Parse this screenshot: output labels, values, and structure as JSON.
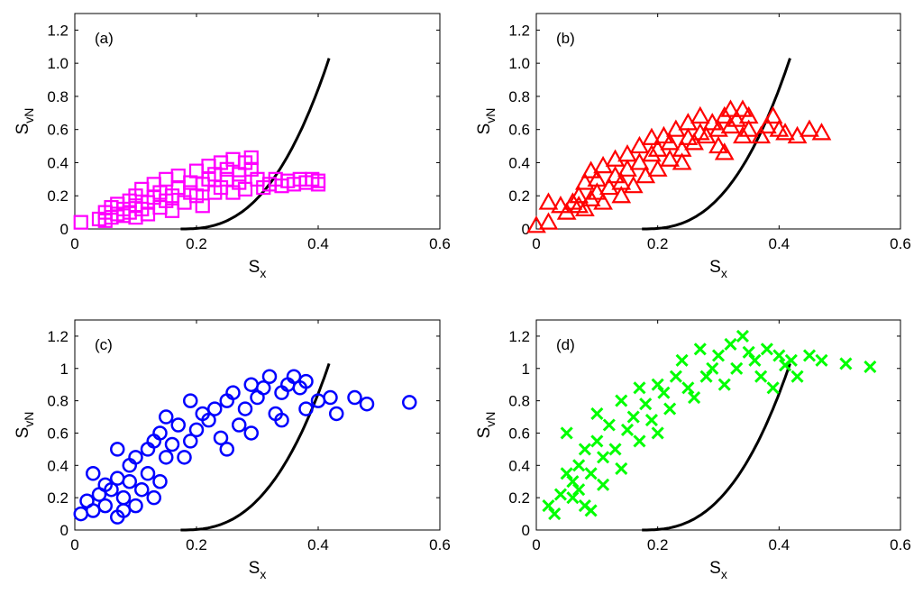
{
  "curve": {
    "color": "#000000",
    "x_start": 0.174,
    "x_end": 0.418
  },
  "chart_data": [
    {
      "type": "scatter",
      "panel_label": "(a)",
      "marker": "square",
      "color": "#ff00ff",
      "xlabel": "S",
      "xlabel_sub": "x",
      "ylabel": "S",
      "ylabel_sub": "vN",
      "xlim": [
        0,
        0.6
      ],
      "ylim": [
        0,
        1.3
      ],
      "xticks": [
        0,
        0.2,
        0.4,
        0.6
      ],
      "xtick_labels": [
        "0",
        "0.2",
        "0.4",
        "0.6"
      ],
      "yticks": [
        0,
        0.2,
        0.4,
        0.6,
        0.8,
        1.0,
        1.2
      ],
      "ytick_labels": [
        "0",
        "0.2",
        "0.4",
        "0.6",
        "0.8",
        "1.0",
        "1.2"
      ],
      "points": [
        [
          0.01,
          0.04
        ],
        [
          0.04,
          0.06
        ],
        [
          0.05,
          0.1
        ],
        [
          0.05,
          0.05
        ],
        [
          0.06,
          0.13
        ],
        [
          0.06,
          0.07
        ],
        [
          0.07,
          0.09
        ],
        [
          0.07,
          0.15
        ],
        [
          0.08,
          0.08
        ],
        [
          0.08,
          0.12
        ],
        [
          0.09,
          0.17
        ],
        [
          0.09,
          0.1
        ],
        [
          0.1,
          0.14
        ],
        [
          0.1,
          0.2
        ],
        [
          0.1,
          0.07
        ],
        [
          0.11,
          0.12
        ],
        [
          0.11,
          0.24
        ],
        [
          0.12,
          0.16
        ],
        [
          0.12,
          0.09
        ],
        [
          0.13,
          0.19
        ],
        [
          0.13,
          0.27
        ],
        [
          0.14,
          0.13
        ],
        [
          0.14,
          0.22
        ],
        [
          0.15,
          0.17
        ],
        [
          0.15,
          0.3
        ],
        [
          0.16,
          0.2
        ],
        [
          0.16,
          0.11
        ],
        [
          0.17,
          0.25
        ],
        [
          0.17,
          0.32
        ],
        [
          0.18,
          0.16
        ],
        [
          0.19,
          0.22
        ],
        [
          0.19,
          0.28
        ],
        [
          0.2,
          0.35
        ],
        [
          0.2,
          0.2
        ],
        [
          0.21,
          0.27
        ],
        [
          0.21,
          0.14
        ],
        [
          0.22,
          0.3
        ],
        [
          0.22,
          0.38
        ],
        [
          0.23,
          0.22
        ],
        [
          0.23,
          0.33
        ],
        [
          0.24,
          0.25
        ],
        [
          0.24,
          0.4
        ],
        [
          0.25,
          0.3
        ],
        [
          0.25,
          0.36
        ],
        [
          0.26,
          0.22
        ],
        [
          0.26,
          0.42
        ],
        [
          0.27,
          0.33
        ],
        [
          0.27,
          0.28
        ],
        [
          0.28,
          0.4
        ],
        [
          0.28,
          0.24
        ],
        [
          0.29,
          0.36
        ],
        [
          0.29,
          0.43
        ],
        [
          0.3,
          0.3
        ],
        [
          0.31,
          0.25
        ],
        [
          0.32,
          0.27
        ],
        [
          0.33,
          0.3
        ],
        [
          0.34,
          0.26
        ],
        [
          0.35,
          0.29
        ],
        [
          0.36,
          0.27
        ],
        [
          0.37,
          0.3
        ],
        [
          0.38,
          0.28
        ],
        [
          0.39,
          0.3
        ],
        [
          0.4,
          0.29
        ],
        [
          0.4,
          0.27
        ]
      ]
    },
    {
      "type": "scatter",
      "panel_label": "(b)",
      "marker": "triangle",
      "color": "#ff0000",
      "xlabel": "S",
      "xlabel_sub": "x",
      "ylabel": "S",
      "ylabel_sub": "vN",
      "xlim": [
        0,
        0.6
      ],
      "ylim": [
        0,
        1.3
      ],
      "xticks": [
        0,
        0.2,
        0.4,
        0.6
      ],
      "xtick_labels": [
        "0",
        "0.2",
        "0.4",
        "0.6"
      ],
      "yticks": [
        0,
        0.2,
        0.4,
        0.6,
        0.8,
        1.0,
        1.2
      ],
      "ytick_labels": [
        "0",
        "0.2",
        "0.4",
        "0.6",
        "0.8",
        "1.0",
        "1.2"
      ],
      "points": [
        [
          0.0,
          0.02
        ],
        [
          0.02,
          0.04
        ],
        [
          0.02,
          0.16
        ],
        [
          0.04,
          0.14
        ],
        [
          0.05,
          0.1
        ],
        [
          0.06,
          0.16
        ],
        [
          0.07,
          0.2
        ],
        [
          0.07,
          0.14
        ],
        [
          0.08,
          0.28
        ],
        [
          0.08,
          0.12
        ],
        [
          0.09,
          0.35
        ],
        [
          0.09,
          0.18
        ],
        [
          0.1,
          0.22
        ],
        [
          0.1,
          0.3
        ],
        [
          0.11,
          0.38
        ],
        [
          0.11,
          0.16
        ],
        [
          0.12,
          0.25
        ],
        [
          0.13,
          0.32
        ],
        [
          0.13,
          0.42
        ],
        [
          0.14,
          0.2
        ],
        [
          0.14,
          0.28
        ],
        [
          0.15,
          0.36
        ],
        [
          0.15,
          0.45
        ],
        [
          0.16,
          0.26
        ],
        [
          0.17,
          0.4
        ],
        [
          0.17,
          0.5
        ],
        [
          0.18,
          0.32
        ],
        [
          0.19,
          0.45
        ],
        [
          0.19,
          0.55
        ],
        [
          0.2,
          0.36
        ],
        [
          0.2,
          0.48
        ],
        [
          0.21,
          0.56
        ],
        [
          0.22,
          0.42
        ],
        [
          0.22,
          0.52
        ],
        [
          0.23,
          0.6
        ],
        [
          0.24,
          0.4
        ],
        [
          0.24,
          0.48
        ],
        [
          0.25,
          0.55
        ],
        [
          0.25,
          0.64
        ],
        [
          0.26,
          0.52
        ],
        [
          0.27,
          0.58
        ],
        [
          0.27,
          0.68
        ],
        [
          0.28,
          0.56
        ],
        [
          0.29,
          0.64
        ],
        [
          0.3,
          0.5
        ],
        [
          0.3,
          0.6
        ],
        [
          0.31,
          0.68
        ],
        [
          0.31,
          0.46
        ],
        [
          0.32,
          0.72
        ],
        [
          0.32,
          0.62
        ],
        [
          0.33,
          0.66
        ],
        [
          0.34,
          0.72
        ],
        [
          0.34,
          0.56
        ],
        [
          0.35,
          0.6
        ],
        [
          0.35,
          0.68
        ],
        [
          0.37,
          0.56
        ],
        [
          0.38,
          0.62
        ],
        [
          0.39,
          0.68
        ],
        [
          0.4,
          0.6
        ],
        [
          0.41,
          0.58
        ],
        [
          0.43,
          0.56
        ],
        [
          0.45,
          0.6
        ],
        [
          0.47,
          0.58
        ]
      ]
    },
    {
      "type": "scatter",
      "panel_label": "(c)",
      "marker": "circle",
      "color": "#0000ff",
      "xlabel": "S",
      "xlabel_sub": "x",
      "ylabel": "S",
      "ylabel_sub": "vN",
      "xlim": [
        0,
        0.6
      ],
      "ylim": [
        0,
        1.3
      ],
      "xticks": [
        0,
        0.2,
        0.4,
        0.6
      ],
      "xtick_labels": [
        "0",
        "0.2",
        "0.4",
        "0.6"
      ],
      "yticks": [
        0,
        0.2,
        0.4,
        0.6,
        0.8,
        1,
        1.2
      ],
      "ytick_labels": [
        "0",
        "0.2",
        "0.4",
        "0.6",
        "0.8",
        "1",
        "1.2"
      ],
      "points": [
        [
          0.01,
          0.1
        ],
        [
          0.02,
          0.18
        ],
        [
          0.03,
          0.12
        ],
        [
          0.03,
          0.35
        ],
        [
          0.04,
          0.22
        ],
        [
          0.05,
          0.28
        ],
        [
          0.05,
          0.15
        ],
        [
          0.06,
          0.25
        ],
        [
          0.07,
          0.32
        ],
        [
          0.07,
          0.5
        ],
        [
          0.07,
          0.08
        ],
        [
          0.08,
          0.2
        ],
        [
          0.08,
          0.12
        ],
        [
          0.09,
          0.3
        ],
        [
          0.09,
          0.4
        ],
        [
          0.1,
          0.45
        ],
        [
          0.1,
          0.15
        ],
        [
          0.11,
          0.25
        ],
        [
          0.12,
          0.35
        ],
        [
          0.12,
          0.5
        ],
        [
          0.13,
          0.55
        ],
        [
          0.13,
          0.2
        ],
        [
          0.14,
          0.6
        ],
        [
          0.14,
          0.3
        ],
        [
          0.15,
          0.45
        ],
        [
          0.15,
          0.7
        ],
        [
          0.16,
          0.53
        ],
        [
          0.17,
          0.65
        ],
        [
          0.18,
          0.45
        ],
        [
          0.19,
          0.55
        ],
        [
          0.19,
          0.8
        ],
        [
          0.2,
          0.62
        ],
        [
          0.21,
          0.72
        ],
        [
          0.22,
          0.68
        ],
        [
          0.23,
          0.75
        ],
        [
          0.24,
          0.57
        ],
        [
          0.25,
          0.8
        ],
        [
          0.25,
          0.5
        ],
        [
          0.26,
          0.85
        ],
        [
          0.27,
          0.65
        ],
        [
          0.28,
          0.75
        ],
        [
          0.29,
          0.9
        ],
        [
          0.29,
          0.6
        ],
        [
          0.3,
          0.82
        ],
        [
          0.31,
          0.88
        ],
        [
          0.32,
          0.95
        ],
        [
          0.33,
          0.72
        ],
        [
          0.34,
          0.85
        ],
        [
          0.34,
          0.68
        ],
        [
          0.35,
          0.9
        ],
        [
          0.36,
          0.95
        ],
        [
          0.37,
          0.88
        ],
        [
          0.38,
          0.92
        ],
        [
          0.38,
          0.75
        ],
        [
          0.4,
          0.8
        ],
        [
          0.42,
          0.82
        ],
        [
          0.43,
          0.72
        ],
        [
          0.46,
          0.82
        ],
        [
          0.48,
          0.78
        ],
        [
          0.55,
          0.79
        ]
      ]
    },
    {
      "type": "scatter",
      "panel_label": "(d)",
      "marker": "x",
      "color": "#00ff00",
      "xlabel": "S",
      "xlabel_sub": "x",
      "ylabel": "S",
      "ylabel_sub": "vN",
      "xlim": [
        0,
        0.6
      ],
      "ylim": [
        0,
        1.3
      ],
      "xticks": [
        0,
        0.2,
        0.4,
        0.6
      ],
      "xtick_labels": [
        "0",
        "0.2",
        "0.4",
        "0.6"
      ],
      "yticks": [
        0,
        0.2,
        0.4,
        0.6,
        0.8,
        1,
        1.2
      ],
      "ytick_labels": [
        "0",
        "0.2",
        "0.4",
        "0.6",
        "0.8",
        "1",
        "1.2"
      ],
      "points": [
        [
          0.02,
          0.15
        ],
        [
          0.03,
          0.1
        ],
        [
          0.04,
          0.22
        ],
        [
          0.05,
          0.35
        ],
        [
          0.05,
          0.6
        ],
        [
          0.06,
          0.2
        ],
        [
          0.06,
          0.3
        ],
        [
          0.07,
          0.4
        ],
        [
          0.07,
          0.25
        ],
        [
          0.08,
          0.5
        ],
        [
          0.08,
          0.15
        ],
        [
          0.09,
          0.12
        ],
        [
          0.09,
          0.35
        ],
        [
          0.1,
          0.55
        ],
        [
          0.1,
          0.72
        ],
        [
          0.11,
          0.45
        ],
        [
          0.11,
          0.28
        ],
        [
          0.12,
          0.65
        ],
        [
          0.13,
          0.5
        ],
        [
          0.14,
          0.8
        ],
        [
          0.14,
          0.38
        ],
        [
          0.15,
          0.62
        ],
        [
          0.16,
          0.7
        ],
        [
          0.17,
          0.88
        ],
        [
          0.17,
          0.55
        ],
        [
          0.18,
          0.78
        ],
        [
          0.19,
          0.68
        ],
        [
          0.2,
          0.9
        ],
        [
          0.2,
          0.6
        ],
        [
          0.21,
          0.85
        ],
        [
          0.22,
          0.75
        ],
        [
          0.23,
          0.95
        ],
        [
          0.24,
          1.05
        ],
        [
          0.25,
          0.88
        ],
        [
          0.26,
          0.82
        ],
        [
          0.27,
          1.12
        ],
        [
          0.28,
          0.95
        ],
        [
          0.29,
          1.0
        ],
        [
          0.3,
          1.08
        ],
        [
          0.31,
          0.9
        ],
        [
          0.32,
          1.15
        ],
        [
          0.33,
          1.0
        ],
        [
          0.34,
          1.2
        ],
        [
          0.35,
          1.1
        ],
        [
          0.36,
          1.05
        ],
        [
          0.37,
          0.95
        ],
        [
          0.38,
          1.12
        ],
        [
          0.39,
          0.88
        ],
        [
          0.4,
          1.08
        ],
        [
          0.41,
          1.02
        ],
        [
          0.42,
          1.05
        ],
        [
          0.43,
          0.95
        ],
        [
          0.45,
          1.08
        ],
        [
          0.47,
          1.05
        ],
        [
          0.51,
          1.03
        ],
        [
          0.55,
          1.01
        ]
      ]
    }
  ]
}
